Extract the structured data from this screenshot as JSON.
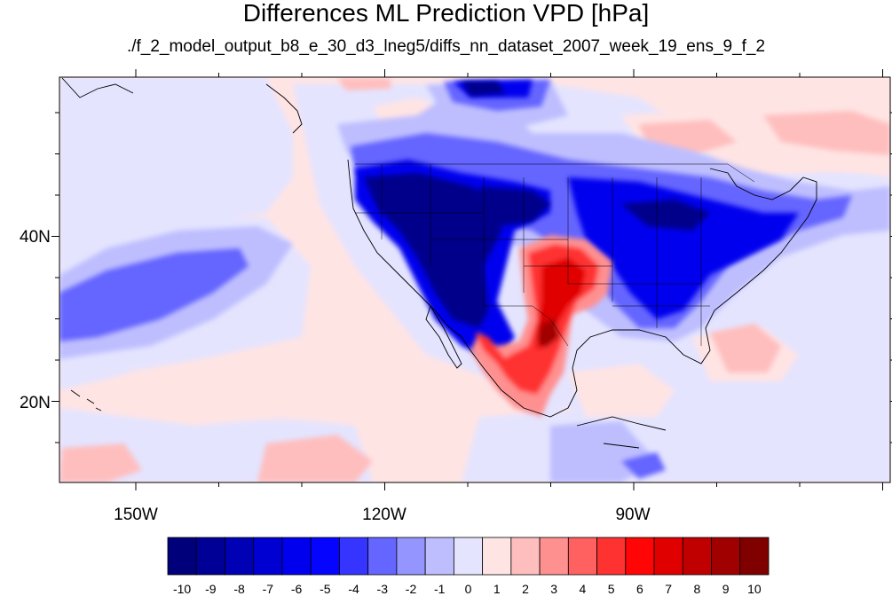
{
  "title": "Differences ML Prediction VPD [hPa]",
  "subtitle": "./f_2_model_output_b8_e_30_d3_lneg5/diffs_nn_dataset_2007_week_19_ens_9_f_2",
  "axes": {
    "lat_labels": [
      "40N",
      "20N"
    ],
    "lon_labels": [
      "150W",
      "120W",
      "90W"
    ]
  },
  "colorbar": {
    "labels": [
      "-10",
      "-9",
      "-8",
      "-7",
      "-6",
      "-5",
      "-4",
      "-3",
      "-2",
      "-1",
      "0",
      "1",
      "2",
      "3",
      "4",
      "5",
      "6",
      "7",
      "8",
      "9",
      "10"
    ],
    "colors": [
      "#00007a",
      "#000096",
      "#0000b4",
      "#0000d2",
      "#0000ee",
      "#0505ff",
      "#3535ff",
      "#6565ff",
      "#9595ff",
      "#bebeff",
      "#e4e4ff",
      "#ffe4e4",
      "#ffbebe",
      "#ff9090",
      "#ff6060",
      "#ff3232",
      "#ff0505",
      "#e00000",
      "#c00000",
      "#a00000",
      "#800000"
    ]
  },
  "palette": {
    "deep_blue": "#00008b",
    "blue": "#0000ee",
    "mid_blue": "#6565ff",
    "light_blue": "#bebeff",
    "pale_blue": "#e4e4ff",
    "pale_red": "#ffe4e4",
    "light_red": "#ffbebe",
    "mid_red": "#ff6060",
    "red": "#ff1010",
    "dark_red": "#a00000"
  }
}
